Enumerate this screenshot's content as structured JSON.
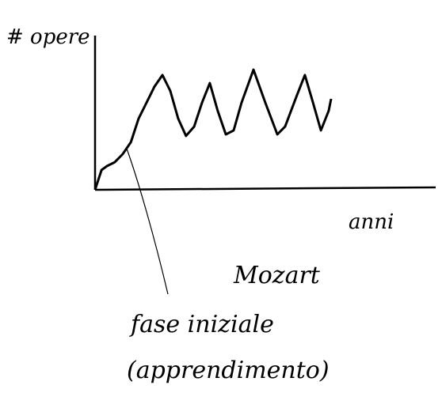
{
  "chart_data": {
    "type": "line",
    "title": "Mozart",
    "y_label": "# opere",
    "x_label": "anni",
    "annotation": [
      "fase iniziale",
      "(apprendimento)"
    ],
    "x": [
      0,
      1.9,
      3.5,
      5.8,
      8.1,
      10.5,
      12.8,
      15.1,
      17.4,
      19.8,
      22.1,
      24.4,
      26.7,
      29.1,
      31.4,
      33.7,
      36,
      38.4,
      40.7,
      43,
      46.5,
      50,
      53.5,
      55.8,
      59.3,
      61.6,
      64,
      66.3,
      68.6,
      69.3
    ],
    "values": [
      0,
      12.8,
      15.4,
      17.9,
      23.1,
      30.8,
      46.2,
      56.4,
      66.7,
      74.4,
      64.1,
      46.2,
      34.9,
      41,
      56.4,
      69.2,
      51.3,
      35.9,
      38.5,
      56.4,
      77.9,
      56.4,
      35.9,
      41,
      61.5,
      74.4,
      56.4,
      38.5,
      51.3,
      59
    ],
    "color": "#000000",
    "xlim": [
      0,
      100
    ],
    "ylim": [
      0,
      100
    ]
  }
}
